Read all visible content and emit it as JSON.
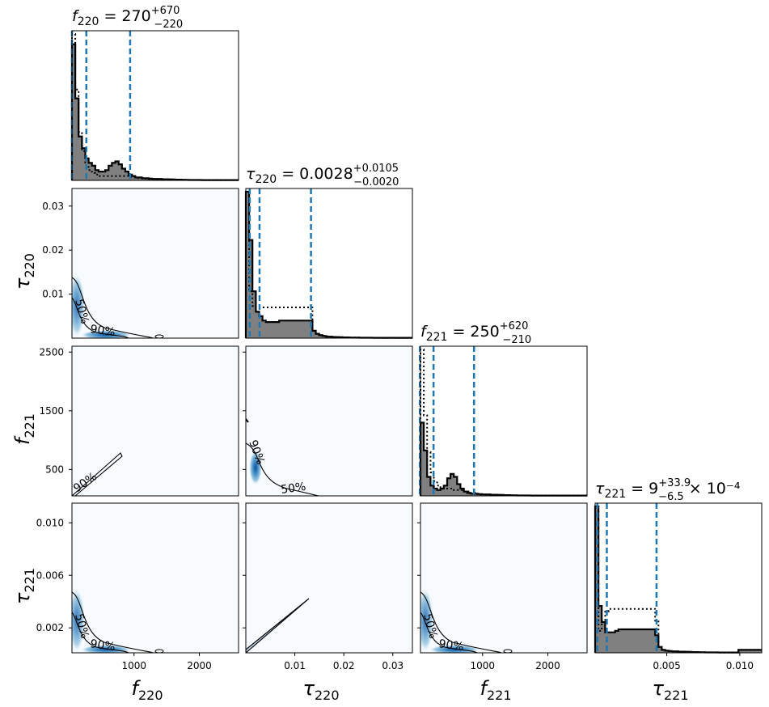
{
  "chart_data": {
    "type": "corner",
    "parameters": [
      {
        "symbol": "f",
        "subscript": "220",
        "range": [
          50,
          2600
        ]
      },
      {
        "symbol": "τ",
        "subscript": "220",
        "range": [
          0.0,
          0.034
        ]
      },
      {
        "symbol": "f",
        "subscript": "221",
        "range": [
          50,
          2600
        ]
      },
      {
        "symbol": "τ",
        "subscript": "221",
        "range": [
          0.0001,
          0.0115
        ]
      }
    ],
    "axis_labels": {
      "x": [
        {
          "base": "f",
          "sub": "220"
        },
        {
          "base": "τ",
          "sub": "220"
        },
        {
          "base": "f",
          "sub": "221"
        },
        {
          "base": "τ",
          "sub": "221"
        }
      ],
      "y": [
        {
          "base": "τ",
          "sub": "220"
        },
        {
          "base": "f",
          "sub": "221"
        },
        {
          "base": "τ",
          "sub": "221"
        }
      ]
    },
    "titles": [
      {
        "base": "f",
        "sub": "220",
        "eq": " = 270",
        "sup": "+670",
        "inf": "−220",
        "suffix": ""
      },
      {
        "base": "τ",
        "sub": "220",
        "eq": " = 0.0028",
        "sup": "+0.0105",
        "inf": "−0.0020",
        "suffix": ""
      },
      {
        "base": "f",
        "sub": "221",
        "eq": " = 250",
        "sup": "+620",
        "inf": "−210",
        "suffix": ""
      },
      {
        "base": "τ",
        "sub": "221",
        "eq": " = 9",
        "sup": "+33.9",
        "inf": "−6.5",
        "suffix": " × 10⁻⁴"
      }
    ],
    "x_ticks": [
      [
        "1000",
        "2000"
      ],
      [
        "0.01",
        "0.02",
        "0.03"
      ],
      [
        "1000",
        "2000"
      ],
      [
        "0.005",
        "0.010"
      ]
    ],
    "x_tick_values": [
      [
        1000,
        2000
      ],
      [
        0.01,
        0.02,
        0.03
      ],
      [
        1000,
        2000
      ],
      [
        0.005,
        0.01
      ]
    ],
    "y_ticks": [
      [
        "0.01",
        "0.02",
        "0.03"
      ],
      [
        "500",
        "1500",
        "2500"
      ],
      [
        "0.002",
        "0.006",
        "0.010"
      ]
    ],
    "y_tick_values": [
      [
        0.01,
        0.02,
        0.03
      ],
      [
        500,
        1500,
        2500
      ],
      [
        0.002,
        0.006,
        0.01
      ]
    ],
    "quantile_lines": [
      [
        50,
        270,
        940
      ],
      [
        0.0008,
        0.0028,
        0.0133
      ],
      [
        40,
        250,
        870
      ],
      [
        0.00025,
        0.0009,
        0.0043
      ]
    ],
    "histograms": [
      {
        "edges_start": 50,
        "bin_width": 51,
        "solid": [
          0.93,
          0.56,
          0.3,
          0.22,
          0.15,
          0.12,
          0.1,
          0.07,
          0.06,
          0.06,
          0.07,
          0.1,
          0.12,
          0.13,
          0.11,
          0.08,
          0.06,
          0.04,
          0.03,
          0.02,
          0.02,
          0.015,
          0.015,
          0.012,
          0.01,
          0.01,
          0.01,
          0.008,
          0.008,
          0.007,
          0.006,
          0.005,
          0.005,
          0.004,
          0.004,
          0.003,
          0.003,
          0.003,
          0.003,
          0.002,
          0.002,
          0.002,
          0.002,
          0.002,
          0.002,
          0.002,
          0.002,
          0.002,
          0.002,
          0.002
        ],
        "dotted": [
          1.0,
          0.62,
          0.33,
          0.2,
          0.12,
          0.07,
          0.05,
          0.04,
          0.03,
          0.03,
          0.03,
          0.03,
          0.03,
          0.03,
          0.03,
          0.03,
          0.03,
          0.02,
          0.02,
          0.02,
          0.015,
          0.015,
          0.012,
          0.01,
          0.01,
          0.008,
          0.008,
          0.007,
          0.006,
          0.005,
          0.005,
          0.004,
          0.004,
          0.004,
          0.003,
          0.003,
          0.003,
          0.003,
          0.002,
          0.002,
          0.002,
          0.002,
          0.002,
          0.002,
          0.002,
          0.002,
          0.002,
          0.002,
          0.002,
          0.002
        ]
      },
      {
        "edges_start": 0.0,
        "bin_width": 0.00068,
        "solid": [
          1.0,
          0.67,
          0.32,
          0.18,
          0.15,
          0.12,
          0.11,
          0.11,
          0.11,
          0.11,
          0.12,
          0.12,
          0.12,
          0.12,
          0.12,
          0.12,
          0.12,
          0.12,
          0.12,
          0.12,
          0.05,
          0.03,
          0.02,
          0.015,
          0.01,
          0.01,
          0.008,
          0.007,
          0.006,
          0.005,
          0.005,
          0.004,
          0.004,
          0.004,
          0.003,
          0.003,
          0.003,
          0.003,
          0.002,
          0.002,
          0.002,
          0.002,
          0.002,
          0.002,
          0.002,
          0.002,
          0.002,
          0.002,
          0.002,
          0.002
        ],
        "dotted": [
          1.0,
          0.32,
          0.22,
          0.21,
          0.21,
          0.21,
          0.21,
          0.21,
          0.21,
          0.21,
          0.21,
          0.21,
          0.21,
          0.21,
          0.21,
          0.21,
          0.21,
          0.21,
          0.21,
          0.21,
          0.05,
          0.03,
          0.02,
          0.015,
          0.012,
          0.01,
          0.008,
          0.007,
          0.006,
          0.005,
          0.005,
          0.004,
          0.004,
          0.004,
          0.003,
          0.003,
          0.003,
          0.003,
          0.002,
          0.002,
          0.002,
          0.002,
          0.002,
          0.002,
          0.002,
          0.002,
          0.002,
          0.002,
          0.002,
          0.002
        ]
      },
      {
        "edges_start": 50,
        "bin_width": 51,
        "solid": [
          0.5,
          0.31,
          0.13,
          0.07,
          0.05,
          0.04,
          0.05,
          0.07,
          0.12,
          0.15,
          0.13,
          0.08,
          0.05,
          0.03,
          0.02,
          0.015,
          0.015,
          0.012,
          0.01,
          0.01,
          0.01,
          0.008,
          0.008,
          0.007,
          0.006,
          0.005,
          0.005,
          0.004,
          0.004,
          0.003,
          0.003,
          0.003,
          0.003,
          0.002,
          0.002,
          0.002,
          0.002,
          0.002,
          0.002,
          0.002,
          0.002,
          0.002,
          0.002,
          0.002,
          0.002,
          0.002,
          0.002,
          0.002,
          0.002,
          0.002
        ],
        "dotted": [
          1.0,
          0.55,
          0.3,
          0.16,
          0.1,
          0.07,
          0.05,
          0.05,
          0.05,
          0.05,
          0.04,
          0.04,
          0.04,
          0.03,
          0.03,
          0.02,
          0.02,
          0.015,
          0.012,
          0.01,
          0.01,
          0.008,
          0.008,
          0.007,
          0.006,
          0.005,
          0.005,
          0.004,
          0.004,
          0.003,
          0.003,
          0.003,
          0.003,
          0.002,
          0.002,
          0.002,
          0.002,
          0.002,
          0.002,
          0.002,
          0.002,
          0.002,
          0.002,
          0.002,
          0.002,
          0.002,
          0.002,
          0.002,
          0.002,
          0.002
        ]
      },
      {
        "edges_start": 0.0001,
        "bin_width": 0.000228,
        "solid": [
          1.0,
          0.32,
          0.21,
          0.14,
          0.14,
          0.14,
          0.15,
          0.16,
          0.16,
          0.16,
          0.16,
          0.16,
          0.16,
          0.16,
          0.16,
          0.16,
          0.16,
          0.16,
          0.12,
          0.04,
          0.02,
          0.015,
          0.012,
          0.01,
          0.01,
          0.008,
          0.008,
          0.007,
          0.006,
          0.005,
          0.005,
          0.004,
          0.004,
          0.003,
          0.003,
          0.003,
          0.003,
          0.002,
          0.002,
          0.002,
          0.002,
          0.002,
          0.002,
          0.02,
          0.02,
          0.02,
          0.02,
          0.02,
          0.02,
          0.02
        ],
        "dotted": [
          1.0,
          0.15,
          0.22,
          0.28,
          0.3,
          0.3,
          0.3,
          0.3,
          0.3,
          0.3,
          0.3,
          0.3,
          0.3,
          0.3,
          0.3,
          0.3,
          0.3,
          0.3,
          0.22,
          0.04,
          0.02,
          0.015,
          0.012,
          0.01,
          0.01,
          0.008,
          0.008,
          0.007,
          0.006,
          0.005,
          0.005,
          0.004,
          0.004,
          0.003,
          0.003,
          0.003,
          0.003,
          0.002,
          0.002,
          0.002,
          0.002,
          0.002,
          0.002,
          0.02,
          0.02,
          0.02,
          0.02,
          0.02,
          0.02,
          0.02
        ]
      }
    ],
    "contour_labels": [
      "50%",
      "90%"
    ],
    "colors": {
      "hist_fill": "#808080",
      "quantile": "#1f77b4",
      "density_bg": "#f7fbff",
      "density_peak": "#08519c"
    }
  }
}
